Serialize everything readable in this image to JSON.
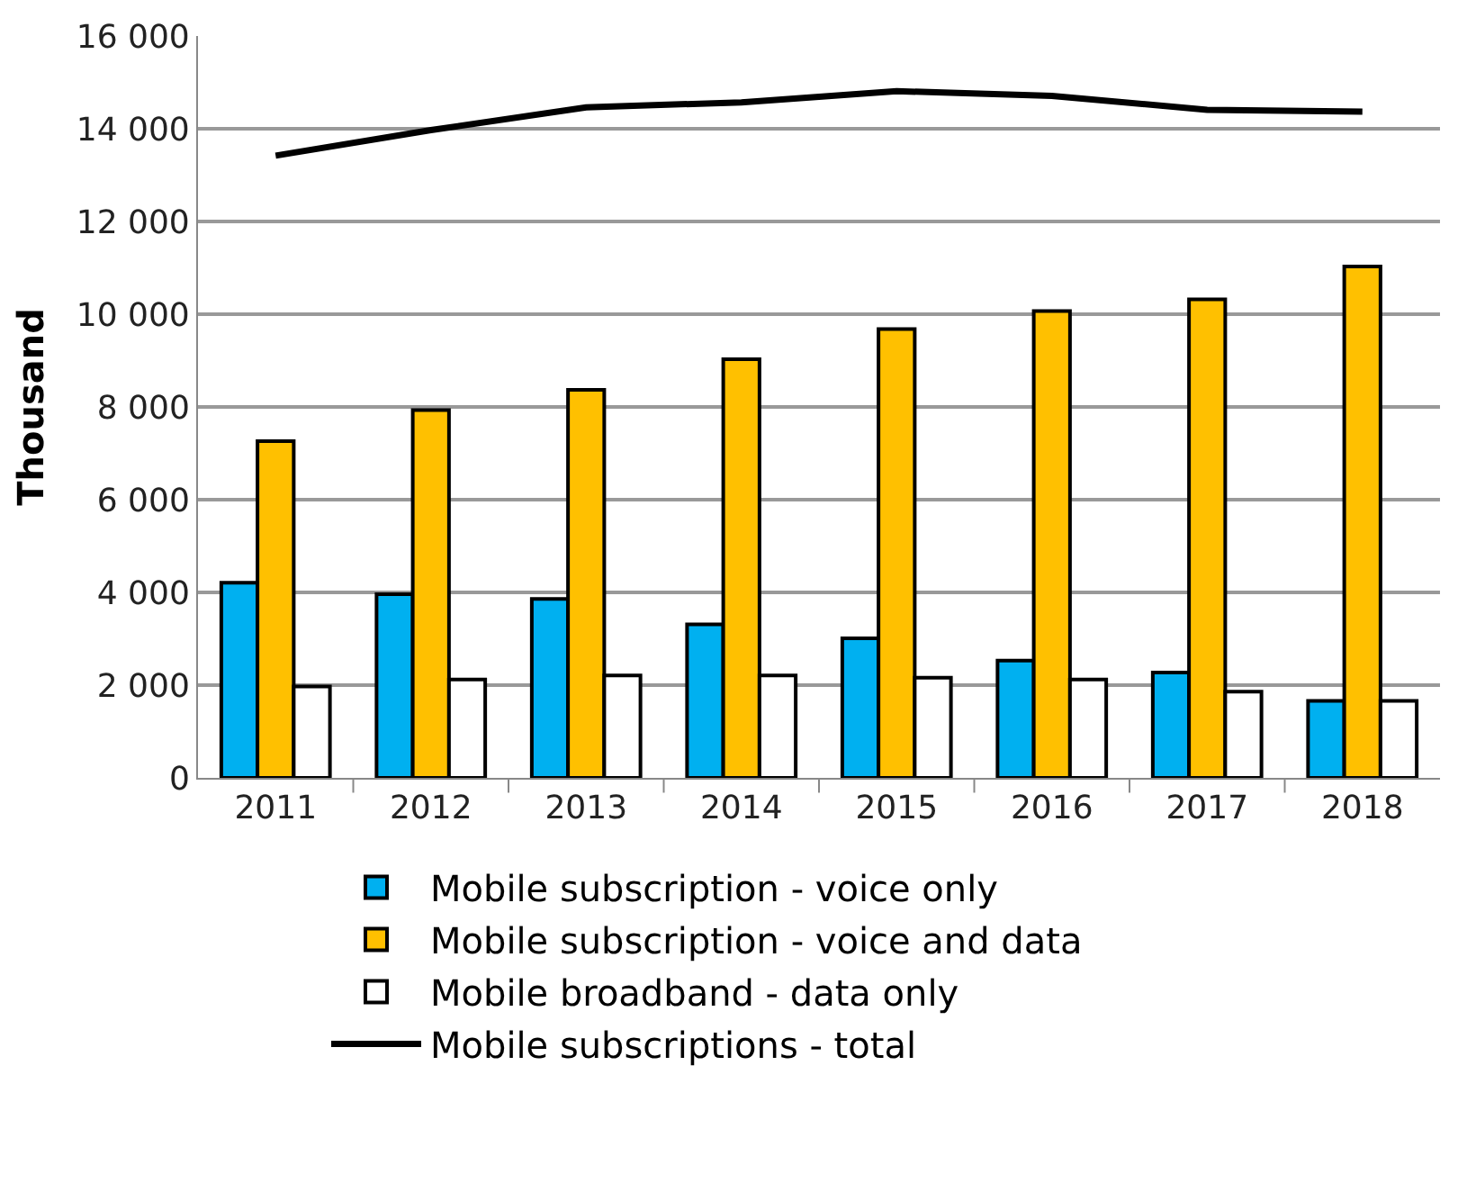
{
  "chart_data": {
    "type": "bar",
    "ylabel": "Thousand",
    "categories": [
      "2011",
      "2012",
      "2013",
      "2014",
      "2015",
      "2016",
      "2017",
      "2018"
    ],
    "series": [
      {
        "name": "Mobile subscription - voice only",
        "color": "#00b0f0",
        "values": [
          4210,
          3960,
          3860,
          3310,
          3010,
          2530,
          2270,
          1660
        ]
      },
      {
        "name": "Mobile subscription - voice and data",
        "color": "#ffc000",
        "values": [
          7260,
          7930,
          8370,
          9030,
          9680,
          10070,
          10320,
          11030
        ]
      },
      {
        "name": "Mobile broadband - data only",
        "color": "#ffffff",
        "values": [
          1970,
          2120,
          2210,
          2210,
          2160,
          2120,
          1860,
          1660
        ]
      },
      {
        "name": "Mobile subscriptions - total",
        "type": "line",
        "color": "#000000",
        "values": [
          13420,
          13970,
          14460,
          14570,
          14810,
          14710,
          14410,
          14370
        ]
      }
    ],
    "ylim": [
      0,
      16000
    ],
    "yticks": [
      {
        "value": 0,
        "label": "0"
      },
      {
        "value": 2000,
        "label": "2 000"
      },
      {
        "value": 4000,
        "label": "4 000"
      },
      {
        "value": 6000,
        "label": "6 000"
      },
      {
        "value": 8000,
        "label": "8 000"
      },
      {
        "value": 10000,
        "label": "10 000"
      },
      {
        "value": 12000,
        "label": "12 000"
      },
      {
        "value": 14000,
        "label": "14 000"
      },
      {
        "value": 16000,
        "label": "16 000"
      }
    ],
    "grid": "y",
    "legend": "bottom",
    "marker": "none",
    "line_style": "solid"
  }
}
